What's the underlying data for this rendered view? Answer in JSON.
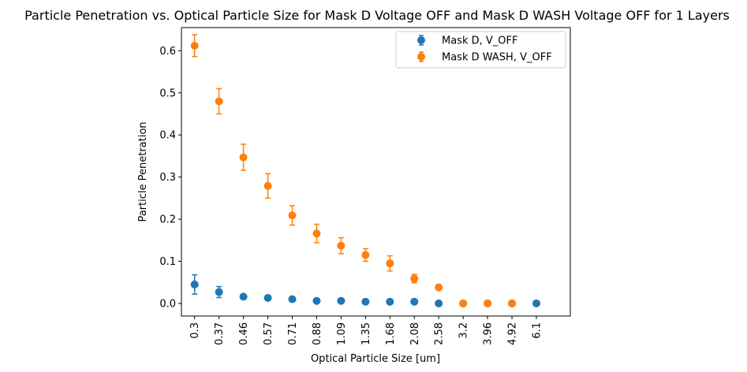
{
  "chart_data": {
    "type": "scatter",
    "title": "Particle Penetration vs. Optical Particle Size for Mask D Voltage OFF and Mask D WASH Voltage OFF for 1 Layers",
    "xlabel": "Optical Particle Size [um]",
    "ylabel": "Particle Penetration",
    "categories": [
      "0.3",
      "0.37",
      "0.46",
      "0.57",
      "0.71",
      "0.88",
      "1.09",
      "1.35",
      "1.68",
      "2.08",
      "2.58",
      "3.2",
      "3.96",
      "4.92",
      "6.1"
    ],
    "yticks": [
      "0.0",
      "0.1",
      "0.2",
      "0.3",
      "0.4",
      "0.5",
      "0.6"
    ],
    "ylim": [
      -0.03,
      0.655
    ],
    "grid": false,
    "legend_position": "upper right",
    "series": [
      {
        "name": "Mask D, V_OFF",
        "color": "#1f77b4",
        "values": [
          0.045,
          0.027,
          0.016,
          0.013,
          0.01,
          0.006,
          0.006,
          0.004,
          0.004,
          0.004,
          0.0,
          0.0,
          0.0,
          0.0,
          0.0
        ],
        "errors": [
          0.023,
          0.013,
          0.005,
          0.003,
          0.002,
          0.001,
          0.001,
          0.001,
          0.001,
          0.001,
          0.0,
          0.0,
          0.0,
          0.0,
          0.0
        ]
      },
      {
        "name": "Mask D WASH, V_OFF",
        "color": "#ff7f0e",
        "values": [
          0.612,
          0.48,
          0.347,
          0.279,
          0.209,
          0.166,
          0.137,
          0.115,
          0.095,
          0.059,
          0.038,
          0.0,
          0.0,
          0.0,
          null
        ],
        "errors": [
          0.026,
          0.03,
          0.031,
          0.029,
          0.023,
          0.022,
          0.019,
          0.015,
          0.018,
          0.01,
          0.005,
          0.0,
          0.0,
          0.0,
          null
        ]
      }
    ]
  }
}
